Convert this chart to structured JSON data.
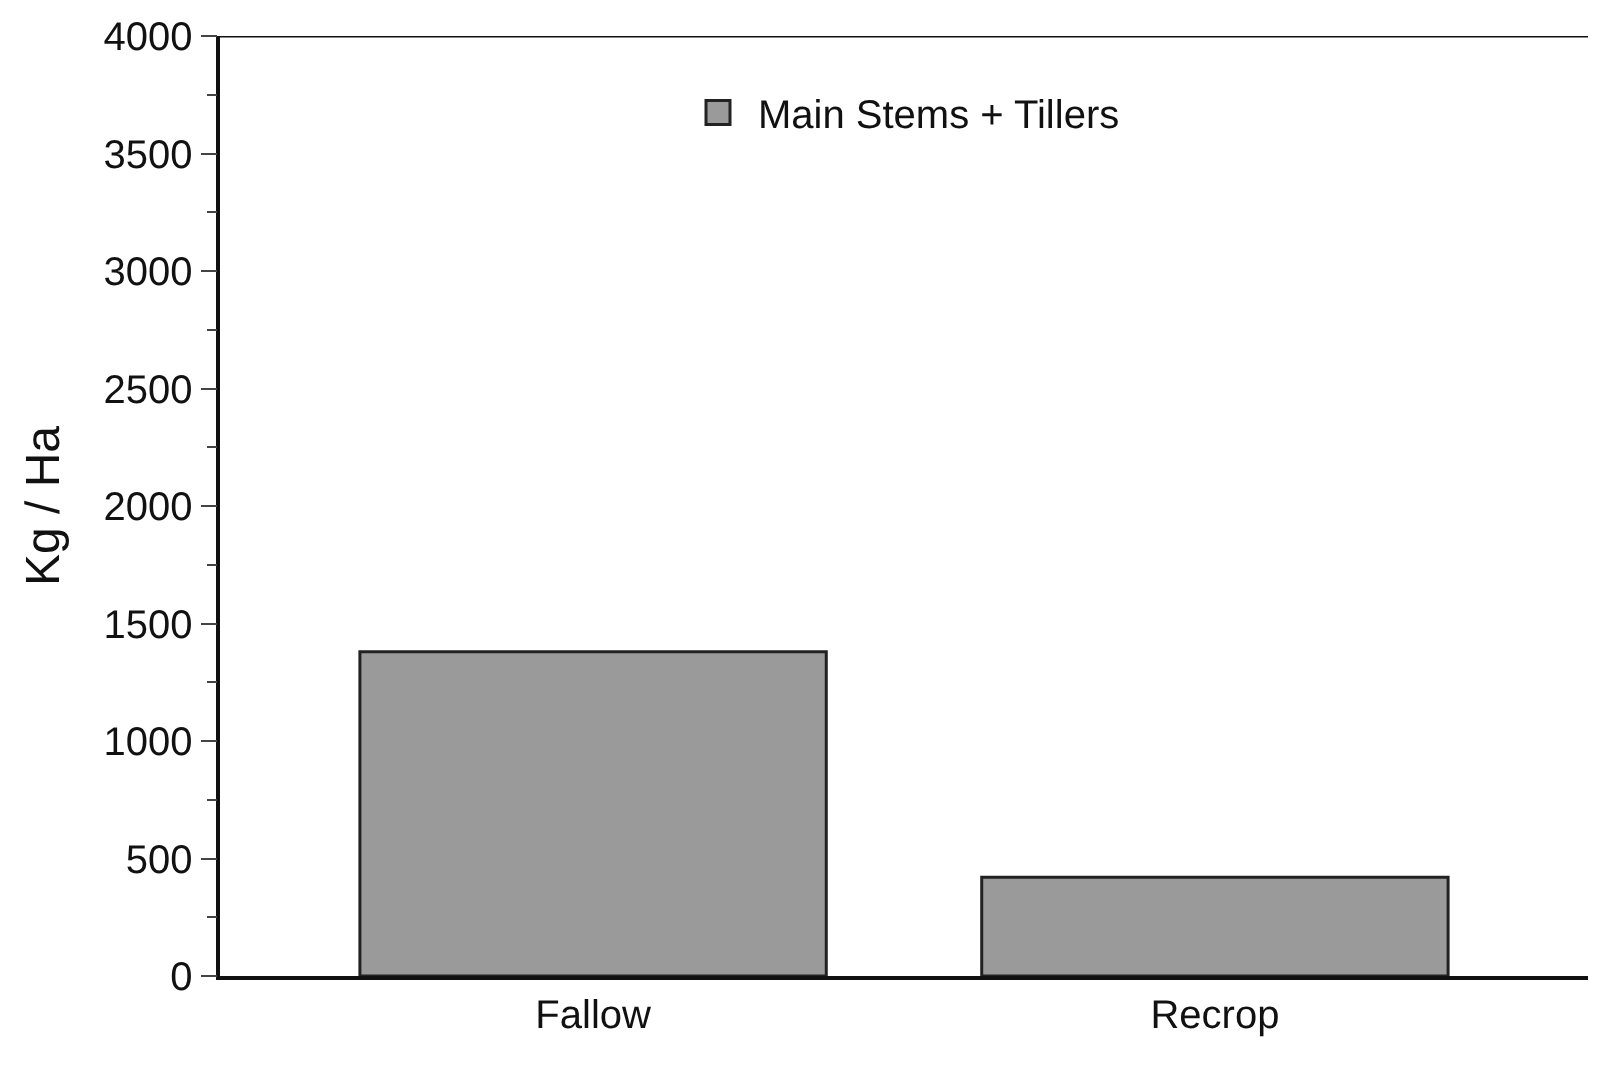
{
  "chart_data": {
    "type": "bar",
    "ylabel": "Kg / Ha",
    "categories": [
      "Fallow",
      "Recrop"
    ],
    "series": [
      {
        "name": "Main Stems + Tillers",
        "color": "#9a9a9a",
        "values": [
          1380,
          420
        ]
      }
    ],
    "ylim": [
      0,
      4000
    ],
    "yticks": [
      0,
      500,
      1000,
      1500,
      2000,
      2500,
      3000,
      3500,
      4000
    ],
    "legend": "top"
  }
}
